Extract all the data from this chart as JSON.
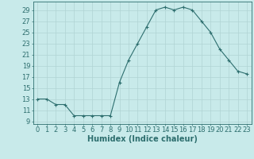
{
  "x": [
    0,
    1,
    2,
    3,
    4,
    5,
    6,
    7,
    8,
    9,
    10,
    11,
    12,
    13,
    14,
    15,
    16,
    17,
    18,
    19,
    20,
    21,
    22,
    23
  ],
  "y": [
    13,
    13,
    12,
    12,
    10,
    10,
    10,
    10,
    10,
    16,
    20,
    23,
    26,
    29,
    29.5,
    29,
    29.5,
    29,
    27,
    25,
    22,
    20,
    18,
    17.5
  ],
  "line_color": "#2d6e6e",
  "marker": "+",
  "marker_size": 3,
  "marker_linewidth": 0.8,
  "bg_color": "#c8eaea",
  "grid_color": "#b0d4d4",
  "xlabel": "Humidex (Indice chaleur)",
  "xlim": [
    -0.5,
    23.5
  ],
  "ylim": [
    8.5,
    30.5
  ],
  "yticks": [
    9,
    11,
    13,
    15,
    17,
    19,
    21,
    23,
    25,
    27,
    29
  ],
  "xticks": [
    0,
    1,
    2,
    3,
    4,
    5,
    6,
    7,
    8,
    9,
    10,
    11,
    12,
    13,
    14,
    15,
    16,
    17,
    18,
    19,
    20,
    21,
    22,
    23
  ],
  "tick_color": "#2d6e6e",
  "label_fontsize": 6,
  "xlabel_fontsize": 7,
  "line_width": 0.8
}
